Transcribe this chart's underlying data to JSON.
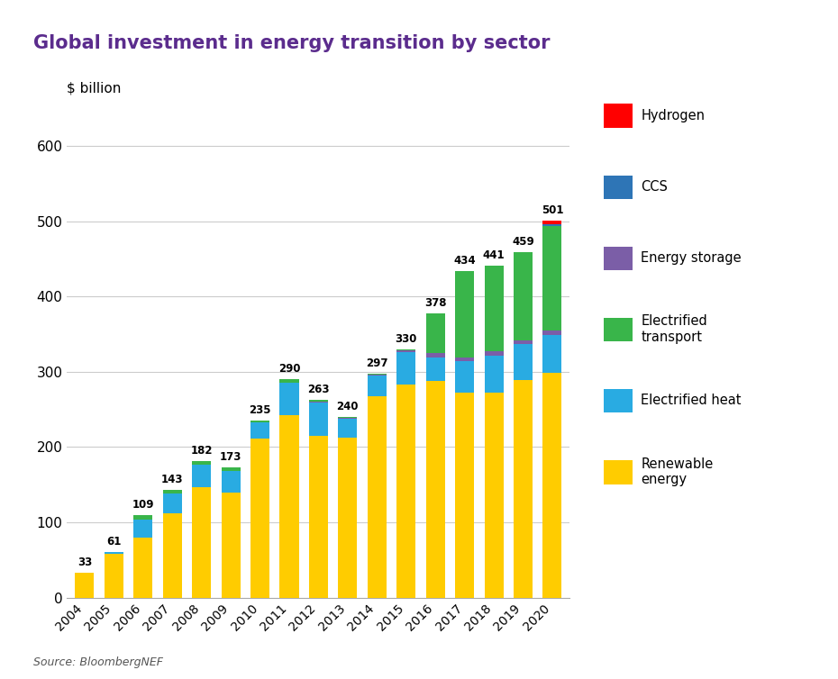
{
  "title": "Global investment in energy transition by sector",
  "ylabel": "$ billion",
  "source": "Source: BloombergNEF",
  "years": [
    2004,
    2005,
    2006,
    2007,
    2008,
    2009,
    2010,
    2011,
    2012,
    2013,
    2014,
    2015,
    2016,
    2017,
    2018,
    2019,
    2020
  ],
  "totals": [
    33,
    61,
    109,
    143,
    182,
    173,
    235,
    290,
    263,
    240,
    297,
    330,
    378,
    434,
    441,
    459,
    501
  ],
  "renewable_energy": [
    33,
    58,
    80,
    112,
    147,
    140,
    211,
    242,
    215,
    212,
    268,
    283,
    288,
    272,
    272,
    289,
    299
  ],
  "electrified_heat": [
    0,
    3,
    24,
    26,
    30,
    28,
    22,
    44,
    44,
    26,
    27,
    43,
    31,
    42,
    50,
    48,
    50
  ],
  "energy_storage": [
    0,
    0,
    0,
    0,
    0,
    0,
    0,
    0,
    1,
    1,
    1,
    3,
    6,
    5,
    5,
    5,
    6
  ],
  "electrified_transport": [
    0,
    0,
    5,
    5,
    5,
    5,
    2,
    4,
    3,
    1,
    1,
    1,
    53,
    115,
    114,
    117,
    139
  ],
  "ccs": [
    0,
    0,
    0,
    0,
    0,
    0,
    0,
    0,
    0,
    0,
    0,
    0,
    0,
    0,
    0,
    0,
    2
  ],
  "hydrogen": [
    0,
    0,
    0,
    0,
    0,
    0,
    0,
    0,
    0,
    0,
    0,
    0,
    0,
    0,
    0,
    0,
    5
  ],
  "colors": {
    "renewable_energy": "#FFCC00",
    "electrified_heat": "#29ABE2",
    "energy_storage": "#7B5EA7",
    "electrified_transport": "#39B54A",
    "ccs": "#2E75B6",
    "hydrogen": "#FF0000"
  },
  "legend_labels": [
    "Hydrogen",
    "CCS",
    "Energy storage",
    "Electrified\ntransport",
    "Electrified heat",
    "Renewable\nenergy"
  ],
  "ylim": [
    0,
    650
  ],
  "yticks": [
    0,
    100,
    200,
    300,
    400,
    500,
    600
  ],
  "title_color": "#5B2C8D",
  "background_color": "#FFFFFF"
}
